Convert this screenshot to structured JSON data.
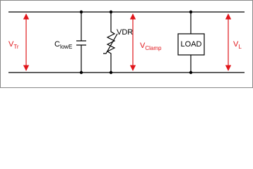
{
  "labels": {
    "v_tr": {
      "main": "V",
      "sub": "Tr"
    },
    "c_lowe": {
      "main": "C",
      "sub": "lowE"
    },
    "vdr": "VDR",
    "v_clamp": {
      "main": "V",
      "sub": "Clamp"
    },
    "load": "LOAD",
    "v_l": {
      "main": "V",
      "sub": "L"
    }
  }
}
